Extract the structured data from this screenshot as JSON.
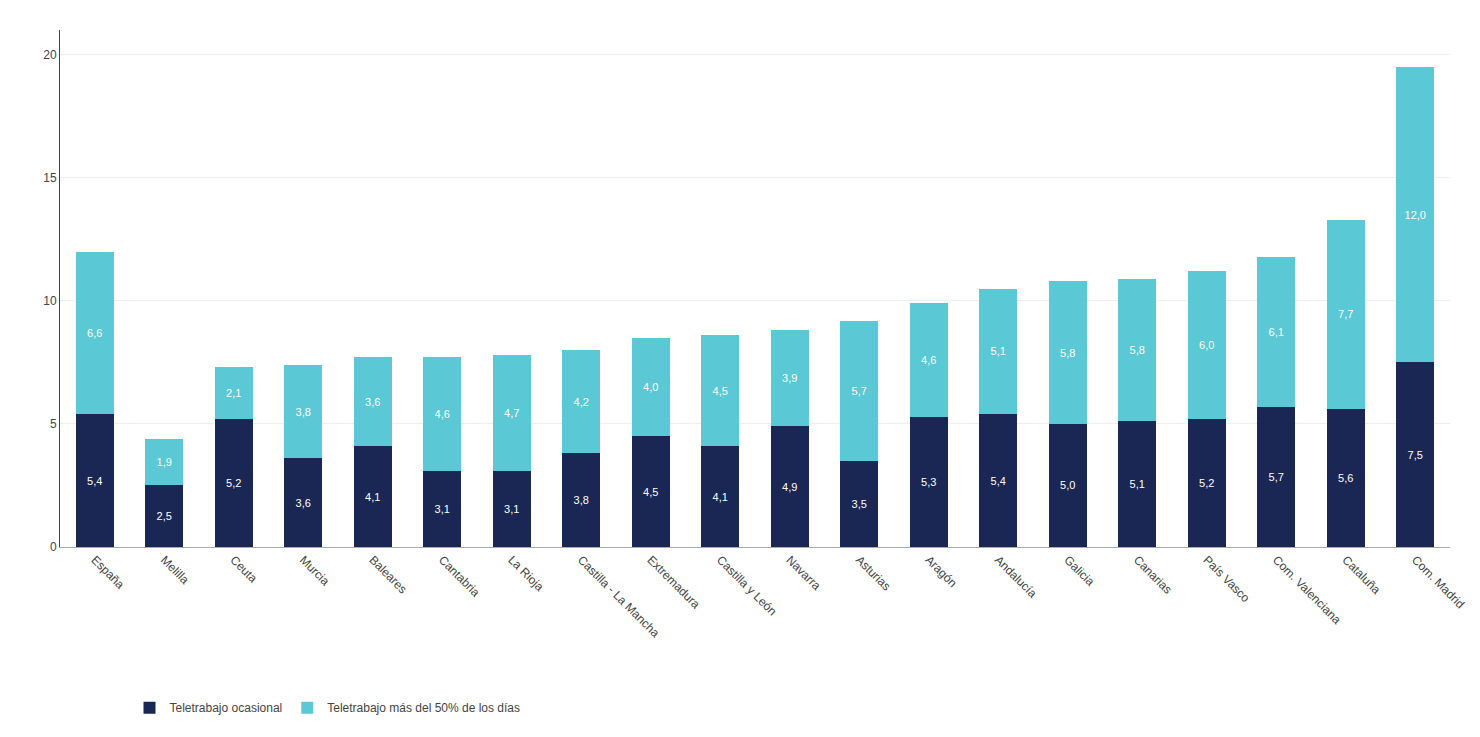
{
  "chart_data": {
    "type": "bar",
    "stacked": true,
    "categories": [
      "España",
      "Melilla",
      "Ceuta",
      "Murcia",
      "Baleares",
      "Cantabria",
      "La Rioja",
      "Castilla - La Mancha",
      "Extremadura",
      "Castilla y León",
      "Navarra",
      "Asturias",
      "Aragón",
      "Andalucía",
      "Galicia",
      "Canarias",
      "País Vasco",
      "Com. Valenciana",
      "Cataluña",
      "Com. Madrid"
    ],
    "series": [
      {
        "name": "Teletrabajo ocasional",
        "color": "#1a2654",
        "values": [
          5.4,
          2.5,
          5.2,
          3.6,
          4.1,
          3.1,
          3.1,
          3.8,
          4.5,
          4.1,
          4.9,
          3.5,
          5.3,
          5.4,
          5.0,
          5.1,
          5.2,
          5.7,
          5.6,
          7.5
        ],
        "value_labels": [
          "5,4",
          "2,5",
          "5,2",
          "3,6",
          "4,1",
          "3,1",
          "3,1",
          "3,8",
          "4,5",
          "4,1",
          "4,9",
          "3,5",
          "5,3",
          "5,4",
          "5,0",
          "5,1",
          "5,2",
          "5,7",
          "5,6",
          "7,5"
        ]
      },
      {
        "name": "Teletrabajo más del 50% de los días",
        "color": "#5bc8d5",
        "values": [
          6.6,
          1.9,
          2.1,
          3.8,
          3.6,
          4.6,
          4.7,
          4.2,
          4.0,
          4.5,
          3.9,
          5.7,
          4.6,
          5.1,
          5.8,
          5.8,
          6.0,
          6.1,
          7.7,
          12.0
        ],
        "value_labels": [
          "6,6",
          "1,9",
          "2,1",
          "3,8",
          "3,6",
          "4,6",
          "4,7",
          "4,2",
          "4,0",
          "4,5",
          "3,9",
          "5,7",
          "4,6",
          "5,1",
          "5,8",
          "5,8",
          "6,0",
          "6,1",
          "7,7",
          "12,0"
        ]
      }
    ],
    "data_labels": true,
    "ylim": [
      0,
      21
    ],
    "yticks": [
      0,
      5,
      10,
      15,
      20
    ],
    "grid": true,
    "legend": "bottom"
  }
}
